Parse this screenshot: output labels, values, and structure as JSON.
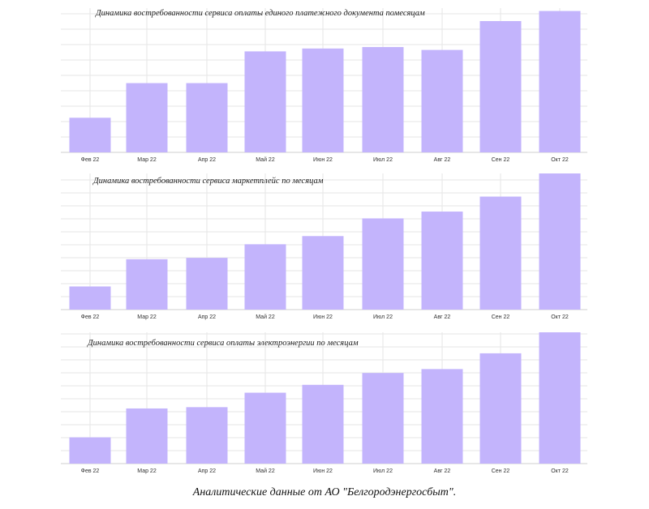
{
  "style": {
    "bar_color": "#c3b4fc",
    "grid_color": "#e6e6e6",
    "axis_color": "#cfcfcf"
  },
  "chart_data": [
    {
      "type": "bar",
      "title": "Динамика востребованности сервиса оплаты единого платежного документа помесяцам",
      "categories": [
        "Фев 22",
        "Мар 22",
        "Апр 22",
        "Май 22",
        "Июн 22",
        "Июл 22",
        "Авг 22",
        "Сен 22",
        "Окт 22"
      ],
      "values": [
        24,
        48,
        48,
        70,
        72,
        73,
        71,
        91,
        98
      ],
      "ylim": [
        0,
        100
      ],
      "grid": true
    },
    {
      "type": "bar",
      "title": "Динамика востребованности сервиса маркетплейс по месяцам",
      "categories": [
        "Фев 22",
        "Мар 22",
        "Апр 22",
        "Май 22",
        "Июн 22",
        "Июл 22",
        "Авг 22",
        "Сен 22",
        "Окт 22"
      ],
      "values": [
        17,
        37,
        38,
        48,
        54,
        67,
        72,
        83,
        100
      ],
      "ylim": [
        0,
        100
      ],
      "grid": true
    },
    {
      "type": "bar",
      "title": "Динамика востребованности сервиса оплаты электроэнергии по месяцам",
      "categories": [
        "Фев 22",
        "Мар 22",
        "Апр 22",
        "Май 22",
        "Июн 22",
        "Июл 22",
        "Авг 22",
        "Сен 22",
        "Окт 22"
      ],
      "values": [
        20,
        42,
        43,
        54,
        60,
        69,
        72,
        84,
        100
      ],
      "ylim": [
        0,
        100
      ],
      "grid": true
    }
  ],
  "caption": "Аналитические данные от АО \"Белгородэнергосбыт\"."
}
